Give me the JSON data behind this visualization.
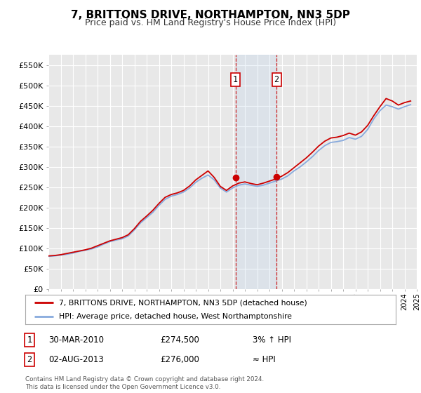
{
  "title": "7, BRITTONS DRIVE, NORTHAMPTON, NN3 5DP",
  "subtitle": "Price paid vs. HM Land Registry's House Price Index (HPI)",
  "title_fontsize": 11,
  "subtitle_fontsize": 9,
  "background_color": "#ffffff",
  "plot_bg_color": "#e8e8e8",
  "grid_color": "#ffffff",
  "hpi_color": "#88aadd",
  "price_color": "#cc0000",
  "ylim": [
    0,
    575000
  ],
  "yticks": [
    0,
    50000,
    100000,
    150000,
    200000,
    250000,
    300000,
    350000,
    400000,
    450000,
    500000,
    550000
  ],
  "ytick_labels": [
    "£0",
    "£50K",
    "£100K",
    "£150K",
    "£200K",
    "£250K",
    "£300K",
    "£350K",
    "£400K",
    "£450K",
    "£500K",
    "£550K"
  ],
  "sale1_date": 2010.24,
  "sale1_price": 274500,
  "sale2_date": 2013.58,
  "sale2_price": 276000,
  "shade_start": 2010.24,
  "shade_end": 2013.58,
  "legend_property": "7, BRITTONS DRIVE, NORTHAMPTON, NN3 5DP (detached house)",
  "legend_hpi": "HPI: Average price, detached house, West Northamptonshire",
  "table_row1": [
    "1",
    "30-MAR-2010",
    "£274,500",
    "3% ↑ HPI"
  ],
  "table_row2": [
    "2",
    "02-AUG-2013",
    "£276,000",
    "≈ HPI"
  ],
  "footer": "Contains HM Land Registry data © Crown copyright and database right 2024.\nThis data is licensed under the Open Government Licence v3.0.",
  "xmin": 1995,
  "xmax": 2025
}
